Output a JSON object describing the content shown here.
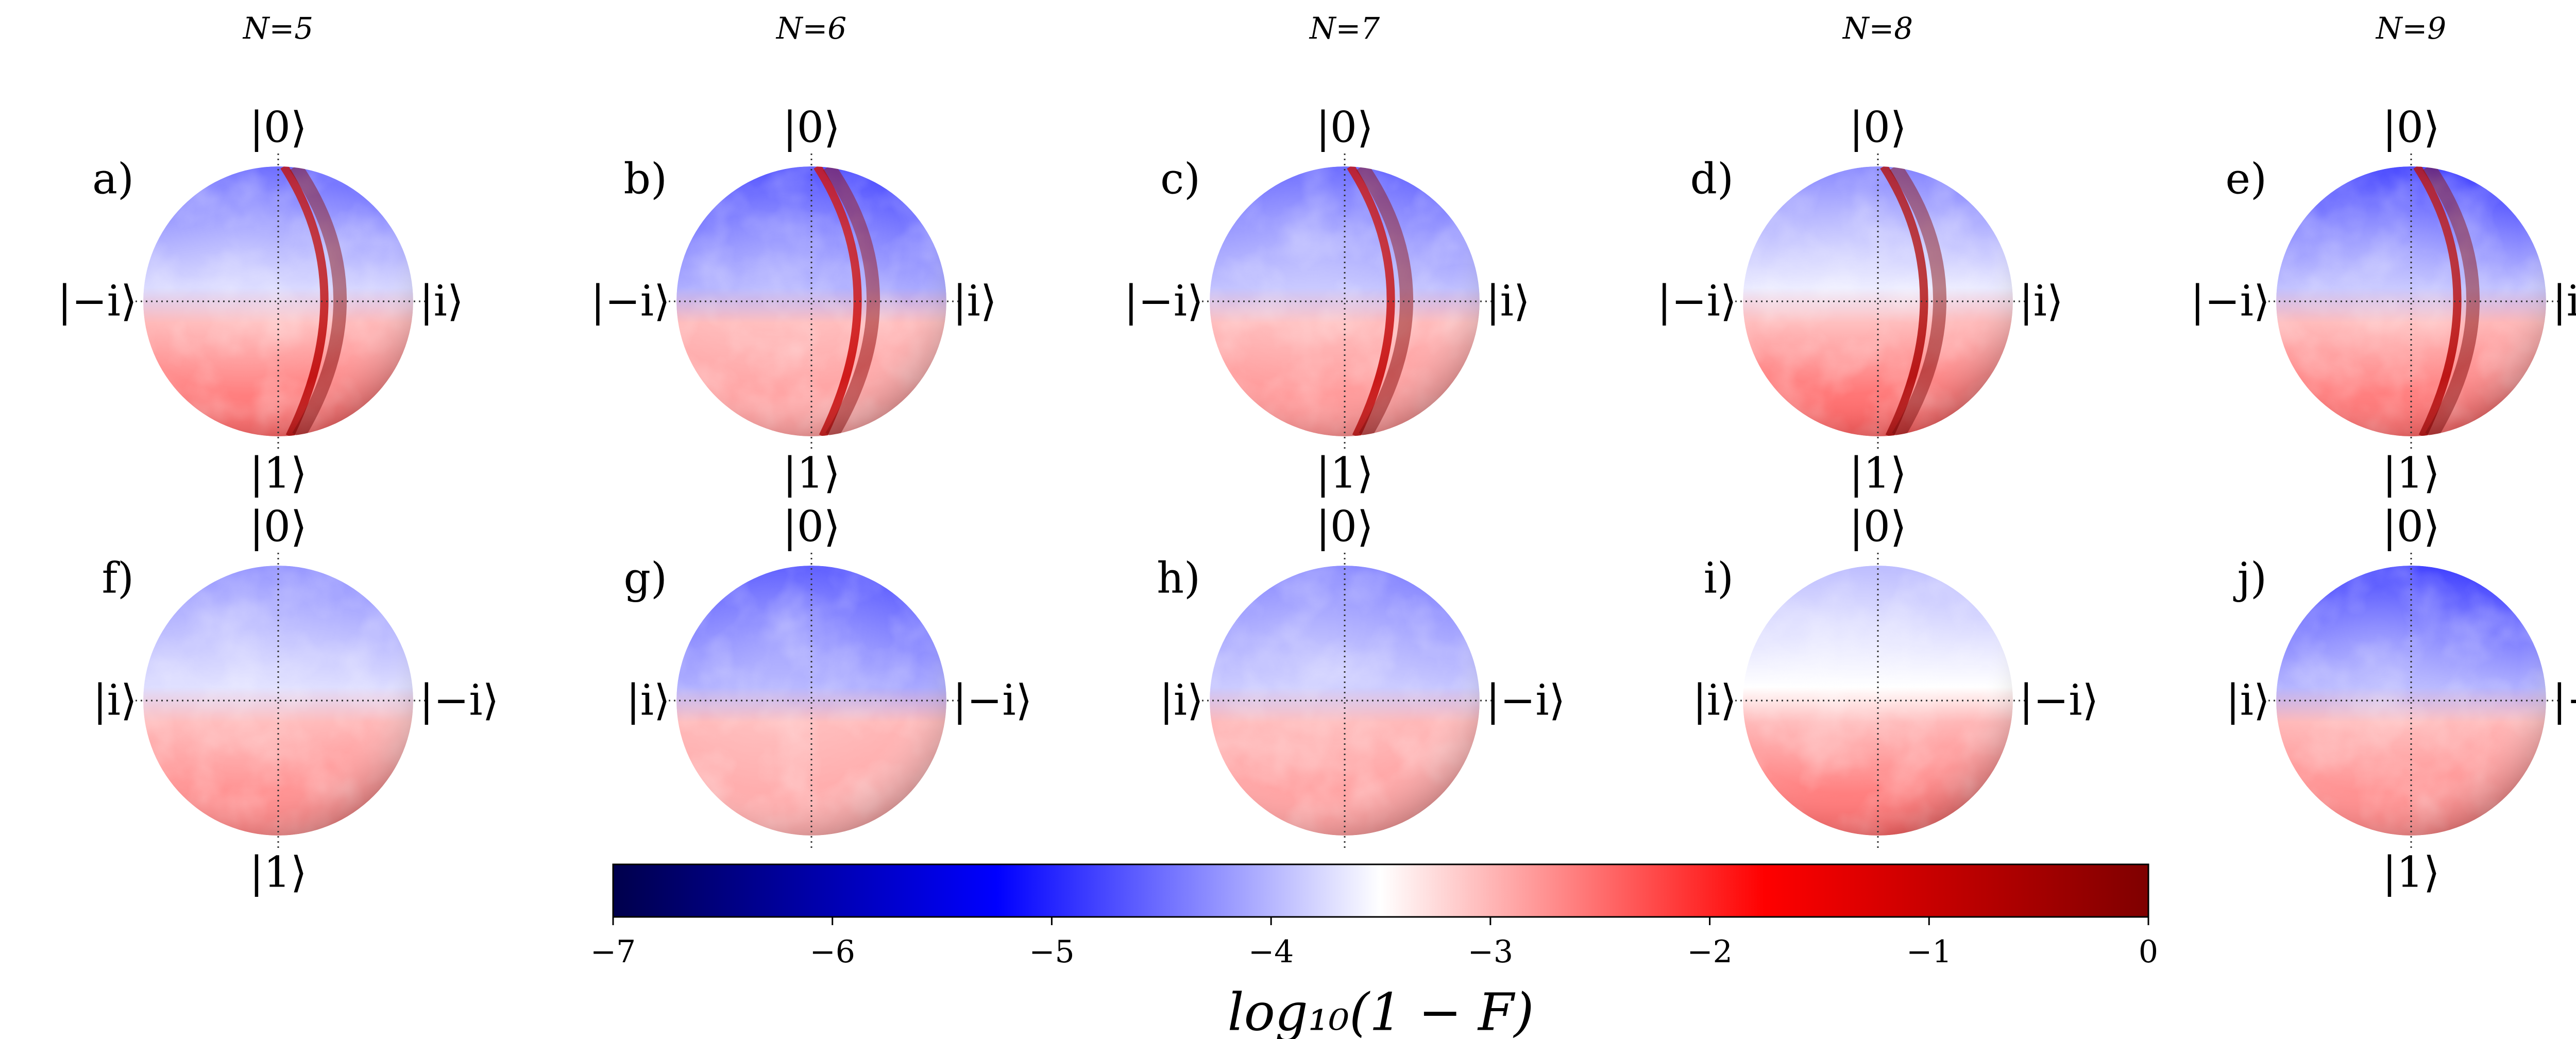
{
  "figure": {
    "column_titles": [
      "N=5",
      "N=6",
      "N=7",
      "N=8",
      "N=9"
    ],
    "panels": [
      {
        "id": "a",
        "label": "a)",
        "row": "top",
        "column": "N=5",
        "kets": {
          "top": "|0⟩",
          "bottom": "|1⟩",
          "left": "|−i⟩",
          "right": "|i⟩"
        }
      },
      {
        "id": "b",
        "label": "b)",
        "row": "top",
        "column": "N=6",
        "kets": {
          "top": "|0⟩",
          "bottom": "|1⟩",
          "left": "|−i⟩",
          "right": "|i⟩"
        }
      },
      {
        "id": "c",
        "label": "c)",
        "row": "top",
        "column": "N=7",
        "kets": {
          "top": "|0⟩",
          "bottom": "|1⟩",
          "left": "|−i⟩",
          "right": "|i⟩"
        }
      },
      {
        "id": "d",
        "label": "d)",
        "row": "top",
        "column": "N=8",
        "kets": {
          "top": "|0⟩",
          "bottom": "|1⟩",
          "left": "|−i⟩",
          "right": "|i⟩"
        }
      },
      {
        "id": "e",
        "label": "e)",
        "row": "top",
        "column": "N=9",
        "kets": {
          "top": "|0⟩",
          "bottom": "|1⟩",
          "left": "|−i⟩",
          "right": "|i⟩"
        }
      },
      {
        "id": "f",
        "label": "f)",
        "row": "bottom",
        "column": "N=5",
        "kets": {
          "top": "|0⟩",
          "bottom": "|1⟩",
          "left": "|i⟩",
          "right": "|−i⟩"
        }
      },
      {
        "id": "g",
        "label": "g)",
        "row": "bottom",
        "column": "N=6",
        "kets": {
          "top": "|0⟩",
          "bottom": "",
          "left": "|i⟩",
          "right": "|−i⟩"
        }
      },
      {
        "id": "h",
        "label": "h)",
        "row": "bottom",
        "column": "N=7",
        "kets": {
          "top": "|0⟩",
          "bottom": "",
          "left": "|i⟩",
          "right": "|−i⟩"
        }
      },
      {
        "id": "i",
        "label": "i)",
        "row": "bottom",
        "column": "N=8",
        "kets": {
          "top": "|0⟩",
          "bottom": "",
          "left": "|i⟩",
          "right": "|−i⟩"
        }
      },
      {
        "id": "j",
        "label": "j)",
        "row": "bottom",
        "column": "N=9",
        "kets": {
          "top": "|0⟩",
          "bottom": "|1⟩",
          "left": "|i⟩",
          "right": "|−i⟩"
        }
      }
    ]
  },
  "chart_data": {
    "type": "heatmap",
    "title": "",
    "colorbar": {
      "label": "log₁₀(1 − F)",
      "range": [
        -7,
        0
      ],
      "ticks": [
        -7,
        -6,
        -5,
        -4,
        -3,
        -2,
        -1,
        0
      ],
      "tick_labels": [
        "−7",
        "−6",
        "−5",
        "−4",
        "−3",
        "−2",
        "−1",
        "0"
      ],
      "colormap": "seismic",
      "colors": [
        "#00004c",
        "#0000ff",
        "#ffffff",
        "#ff0000",
        "#7f0000"
      ],
      "orientation": "horizontal"
    },
    "spheres": [
      {
        "panel": "a",
        "view": "front",
        "north_value": -4.6,
        "south_value": -2.4,
        "feature": "high-infidelity band near meridian",
        "band_value": -0.8
      },
      {
        "panel": "b",
        "view": "front",
        "north_value": -4.8,
        "south_value": -2.8,
        "feature": "high-infidelity band near meridian",
        "band_value": -1.0
      },
      {
        "panel": "c",
        "view": "front",
        "north_value": -4.6,
        "south_value": -2.7,
        "feature": "high-infidelity band near meridian",
        "band_value": -0.9
      },
      {
        "panel": "d",
        "view": "front",
        "north_value": -4.4,
        "south_value": -2.3,
        "feature": "high-infidelity band near meridian",
        "band_value": -0.6
      },
      {
        "panel": "e",
        "view": "front",
        "north_value": -4.9,
        "south_value": -2.4,
        "feature": "high-infidelity band near meridian",
        "band_value": -0.7
      },
      {
        "panel": "f",
        "view": "back",
        "north_value": -4.3,
        "south_value": -2.6,
        "feature": "none"
      },
      {
        "panel": "g",
        "view": "back",
        "north_value": -4.7,
        "south_value": -2.9,
        "feature": "none"
      },
      {
        "panel": "h",
        "view": "back",
        "north_value": -4.4,
        "south_value": -2.8,
        "feature": "none"
      },
      {
        "panel": "i",
        "view": "back",
        "north_value": -4.0,
        "south_value": -2.4,
        "feature": "none"
      },
      {
        "panel": "j",
        "view": "back",
        "north_value": -4.9,
        "south_value": -2.6,
        "feature": "none"
      }
    ]
  }
}
